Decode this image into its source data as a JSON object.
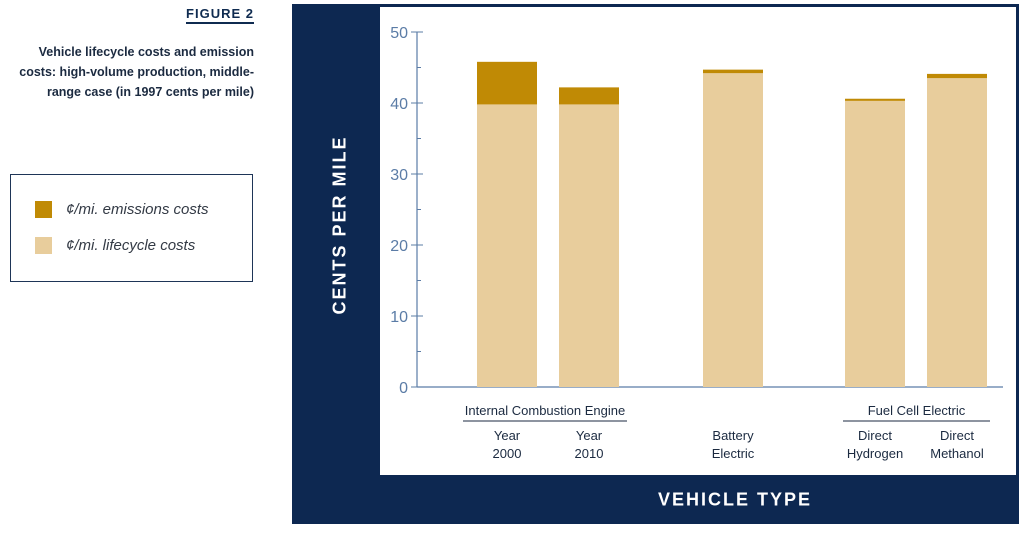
{
  "figure": {
    "label": "FIGURE 2",
    "caption_lines": [
      "Vehicle lifecycle costs and emission",
      "costs: high-volume production, middle-",
      "range case (in 1997 cents per mile)"
    ]
  },
  "legend": {
    "items": [
      {
        "label": "¢/mi. emissions costs",
        "color": "#c08a05"
      },
      {
        "label": "¢/mi. lifecycle costs",
        "color": "#e8cd9c"
      }
    ]
  },
  "chart_data": {
    "type": "bar",
    "stacked": true,
    "ylabel": "CENTS PER MILE",
    "xlabel": "VEHICLE TYPE",
    "ylim": [
      0,
      50
    ],
    "yticks": [
      0,
      10,
      20,
      30,
      40,
      50
    ],
    "grid": false,
    "legend_position": "left",
    "categories": [
      {
        "lines": [
          "Year",
          "2000"
        ],
        "group": "Internal Combustion Engine"
      },
      {
        "lines": [
          "Year",
          "2010"
        ],
        "group": "Internal Combustion Engine"
      },
      {
        "lines": [
          "Battery",
          "Electric"
        ],
        "group": ""
      },
      {
        "lines": [
          "Direct",
          "Hydrogen"
        ],
        "group": "Fuel Cell Electric"
      },
      {
        "lines": [
          "Direct",
          "Methanol"
        ],
        "group": "Fuel Cell Electric"
      }
    ],
    "groups": [
      "Internal Combustion Engine",
      "Fuel Cell Electric"
    ],
    "series": [
      {
        "name": "¢/mi. lifecycle costs",
        "color": "#e8cd9c",
        "values": [
          39.8,
          39.8,
          44.2,
          40.3,
          43.5
        ]
      },
      {
        "name": "¢/mi. emissions costs",
        "color": "#c08a05",
        "values": [
          6.0,
          2.4,
          0.5,
          0.3,
          0.6
        ]
      }
    ]
  }
}
